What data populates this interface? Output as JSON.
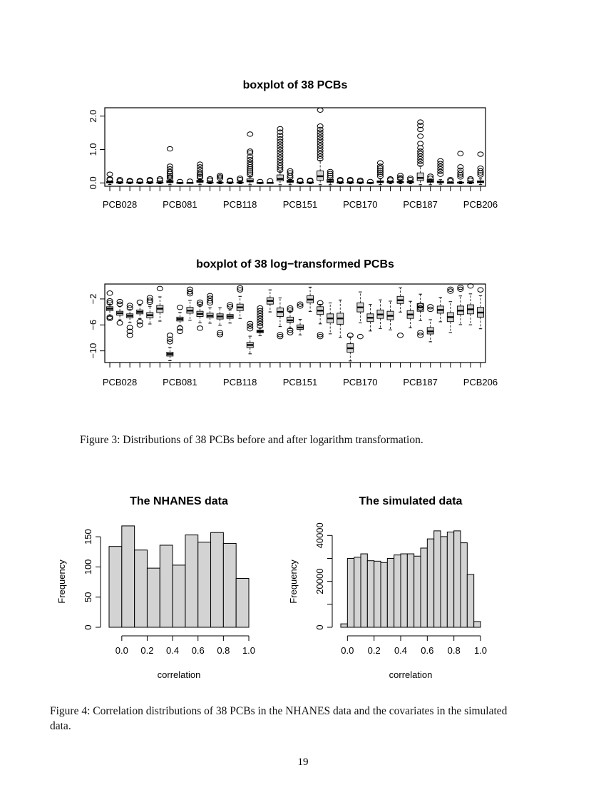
{
  "figure3": {
    "caption": "Figure 3: Distributions of 38 PCBs before and after logarithm transformation."
  },
  "figure4": {
    "caption": "Figure 4:   Correlation distributions of 38 PCBs in the NHANES data and the covariates in the simulated data."
  },
  "page_number": "19",
  "chart_data": [
    {
      "type": "boxplot",
      "title": "boxplot of 38 PCBs",
      "xlabel": "",
      "ylabel": "",
      "n_boxes": 38,
      "x_tick_labels": [
        "PCB028",
        "PCB081",
        "PCB118",
        "PCB151",
        "PCB170",
        "PCB187",
        "PCB206"
      ],
      "x_tick_label_positions": [
        1,
        7,
        13,
        19,
        25,
        31,
        37
      ],
      "y_ticks": [
        "0.0",
        "1.0",
        "2.0"
      ],
      "y_tick_values": [
        0,
        1,
        2
      ],
      "ylim": [
        -0.1,
        2.25
      ],
      "medians": [
        0.02,
        0.01,
        0.01,
        0.01,
        0.01,
        0.01,
        0.03,
        0.0,
        0.0,
        0.04,
        0.01,
        0.01,
        0.01,
        0.01,
        0.06,
        0.0,
        0.0,
        0.12,
        0.04,
        0.01,
        0.01,
        0.2,
        0.05,
        0.01,
        0.01,
        0.01,
        0.0,
        0.03,
        0.02,
        0.02,
        0.02,
        0.15,
        0.05,
        0.02,
        0.0,
        0.01,
        0.01,
        0.03
      ],
      "box_q1": [
        0.0,
        0.0,
        0.0,
        0.0,
        0.0,
        0.0,
        0.01,
        0.0,
        0.0,
        0.02,
        0.0,
        0.0,
        0.0,
        0.0,
        0.03,
        0.0,
        0.0,
        0.06,
        0.02,
        0.0,
        0.0,
        0.08,
        0.02,
        0.0,
        0.0,
        0.0,
        0.0,
        0.01,
        0.01,
        0.01,
        0.01,
        0.07,
        0.02,
        0.01,
        0.0,
        0.0,
        0.0,
        0.01
      ],
      "box_q3": [
        0.04,
        0.02,
        0.02,
        0.02,
        0.02,
        0.02,
        0.07,
        0.01,
        0.01,
        0.08,
        0.02,
        0.02,
        0.02,
        0.02,
        0.12,
        0.01,
        0.01,
        0.24,
        0.08,
        0.02,
        0.02,
        0.36,
        0.1,
        0.02,
        0.02,
        0.02,
        0.01,
        0.06,
        0.04,
        0.04,
        0.04,
        0.3,
        0.1,
        0.05,
        0.01,
        0.02,
        0.02,
        0.06
      ],
      "outliers": [
        [
          0.26,
          0.12,
          0.1
        ],
        [
          0.1,
          0.06
        ],
        [
          0.07,
          0.05
        ],
        [
          0.07,
          0.05
        ],
        [
          0.1,
          0.07
        ],
        [
          0.12,
          0.08
        ],
        [
          1.02,
          0.5,
          0.42,
          0.34,
          0.28,
          0.22,
          0.18,
          0.14
        ],
        [
          0.04
        ],
        [
          0.05
        ],
        [
          0.56,
          0.48,
          0.4,
          0.32,
          0.26,
          0.2,
          0.16
        ],
        [
          0.12,
          0.08
        ],
        [
          0.22,
          0.18,
          0.14
        ],
        [
          0.08,
          0.06
        ],
        [
          0.14,
          0.1
        ],
        [
          1.46,
          0.95,
          0.9,
          0.78,
          0.7,
          0.62,
          0.55,
          0.48,
          0.42,
          0.36,
          0.3,
          0.24
        ],
        [
          0.04
        ],
        [
          0.06
        ],
        [
          1.62,
          1.52,
          1.42,
          1.32,
          1.24,
          1.16,
          1.08,
          1.0,
          0.92,
          0.84,
          0.76,
          0.68,
          0.6,
          0.52,
          0.45,
          0.38
        ],
        [
          0.36,
          0.3,
          0.22,
          0.16
        ],
        [
          0.08,
          0.06
        ],
        [
          0.08,
          0.06
        ],
        [
          2.18,
          1.7,
          1.6,
          1.52,
          1.44,
          1.36,
          1.28,
          1.2,
          1.12,
          1.04,
          0.96,
          0.88,
          0.8,
          0.72
        ],
        [
          0.34,
          0.28,
          0.22,
          0.16
        ],
        [
          0.1,
          0.07
        ],
        [
          0.1,
          0.07
        ],
        [
          0.08,
          0.05
        ],
        [
          0.04
        ],
        [
          0.6,
          0.5,
          0.44,
          0.38,
          0.32,
          0.26,
          0.2
        ],
        [
          0.12,
          0.09
        ],
        [
          0.22,
          0.16,
          0.12
        ],
        [
          0.14,
          0.1
        ],
        [
          1.82,
          1.72,
          1.6,
          1.4,
          1.18,
          1.05,
          0.95,
          0.88,
          0.8,
          0.72,
          0.64,
          0.56
        ],
        [
          0.2,
          0.14
        ],
        [
          0.66,
          0.58,
          0.5,
          0.42,
          0.34,
          0.26
        ],
        [
          0.1,
          0.06
        ],
        [
          0.88,
          0.48,
          0.38,
          0.3,
          0.24,
          0.18
        ],
        [
          0.12,
          0.08
        ],
        [
          0.86,
          0.44,
          0.36,
          0.3,
          0.24
        ]
      ]
    },
    {
      "type": "boxplot",
      "title": "boxplot of 38 log−transformed PCBs",
      "xlabel": "",
      "ylabel": "",
      "n_boxes": 38,
      "x_tick_labels": [
        "PCB028",
        "PCB081",
        "PCB118",
        "PCB151",
        "PCB170",
        "PCB187",
        "PCB206"
      ],
      "x_tick_label_positions": [
        1,
        7,
        13,
        19,
        25,
        31,
        37
      ],
      "y_ticks": [
        "−10",
        "−6",
        "−2"
      ],
      "y_tick_values": [
        -10,
        -6,
        -2
      ],
      "ylim": [
        -11.8,
        0.3
      ],
      "medians": [
        -3.5,
        -4.2,
        -4.6,
        -4.0,
        -4.5,
        -3.5,
        -10.5,
        -5.1,
        -3.8,
        -4.3,
        -4.6,
        -4.7,
        -4.7,
        -3.3,
        -9.1,
        -7.0,
        -2.3,
        -4.0,
        -5.3,
        -6.4,
        -2.1,
        -3.8,
        -5.0,
        -5.0,
        -9.6,
        -3.3,
        -4.9,
        -4.4,
        -4.6,
        -2.2,
        -4.4,
        -3.3,
        -7.0,
        -3.7,
        -4.8,
        -3.8,
        -3.6,
        -4.1
      ],
      "box_q1": [
        -3.8,
        -4.5,
        -4.9,
        -4.3,
        -4.9,
        -4.1,
        -10.8,
        -5.4,
        -4.2,
        -4.7,
        -4.9,
        -5.1,
        -5.0,
        -3.8,
        -9.5,
        -7.2,
        -2.8,
        -4.7,
        -5.6,
        -6.7,
        -2.6,
        -4.4,
        -5.7,
        -5.9,
        -10.2,
        -4.0,
        -5.5,
        -5.0,
        -5.2,
        -2.7,
        -5.0,
        -3.9,
        -7.4,
        -4.2,
        -5.5,
        -4.4,
        -4.3,
        -4.8
      ],
      "box_q3": [
        -3.2,
        -3.9,
        -4.3,
        -3.7,
        -4.1,
        -3.0,
        -10.2,
        -4.8,
        -3.3,
        -3.9,
        -4.2,
        -4.3,
        -4.4,
        -2.8,
        -8.7,
        -6.8,
        -1.8,
        -3.4,
        -4.8,
        -6.0,
        -1.5,
        -3.2,
        -4.3,
        -4.2,
        -8.9,
        -2.6,
        -4.3,
        -3.7,
        -3.9,
        -1.6,
        -3.8,
        -2.7,
        -6.4,
        -3.1,
        -4.1,
        -3.1,
        -2.9,
        -3.3
      ],
      "outliers": [
        [
          -1.1,
          -2.3,
          -2.6,
          -4.8,
          -5.0
        ],
        [
          -2.4,
          -2.8,
          -5.7
        ],
        [
          -3.0,
          -3.4,
          -6.4,
          -7.0,
          -7.6
        ],
        [
          -2.5,
          -5.5,
          -6.0
        ],
        [
          -1.8,
          -2.2,
          -2.5
        ],
        [
          -0.4
        ],
        [
          -7.6,
          -8.2,
          -8.6
        ],
        [
          -3.3,
          -6.5,
          -7.0
        ],
        [
          -0.5,
          -0.9,
          -1.2
        ],
        [
          -2.5,
          -2.8,
          -6.5
        ],
        [
          -1.5,
          -1.9,
          -2.3,
          -2.6
        ],
        [
          -7.2,
          -7.5
        ],
        [
          -2.9,
          -3.2
        ],
        [
          -0.3,
          -0.6
        ],
        [
          -5.8,
          -6.2,
          -6.6
        ],
        [
          -3.4,
          -3.8,
          -4.2,
          -4.6,
          -5.0,
          -5.4,
          -5.8,
          -6.2
        ],
        [],
        [
          -7.5,
          -7.8
        ],
        [
          -3.4,
          -3.7,
          -6.8,
          -7.2
        ],
        [
          -2.8,
          -3.1
        ],
        [],
        [
          -2.6,
          -7.5,
          -7.8
        ],
        [],
        [],
        [
          -7.6
        ],
        [
          -7.8
        ],
        [],
        [],
        [],
        [
          -7.6
        ],
        [],
        [
          -3.0,
          -3.4,
          -7.2,
          -7.6
        ],
        [
          -3.2,
          -3.6
        ],
        [],
        [
          -0.5,
          -0.8
        ],
        [
          -0.2,
          -0.5
        ],
        [
          0.0
        ],
        [
          -0.6
        ]
      ]
    },
    {
      "type": "bar",
      "title": "The NHANES data",
      "xlabel": "correlation",
      "ylabel": "Frequency",
      "bin_edges": [
        -0.1,
        0.0,
        0.1,
        0.2,
        0.3,
        0.4,
        0.5,
        0.6,
        0.7,
        0.8,
        0.9,
        1.0
      ],
      "values": [
        134,
        168,
        128,
        98,
        136,
        103,
        153,
        141,
        157,
        139,
        81
      ],
      "x_ticks": [
        "0.0",
        "0.2",
        "0.4",
        "0.6",
        "0.8",
        "1.0"
      ],
      "x_tick_values": [
        0.0,
        0.2,
        0.4,
        0.6,
        0.8,
        1.0
      ],
      "y_ticks": [
        "0",
        "50",
        "100",
        "150"
      ],
      "y_tick_values": [
        0,
        50,
        100,
        150
      ],
      "xlim": [
        -0.1,
        1.0
      ],
      "ylim": [
        0,
        175
      ]
    },
    {
      "type": "bar",
      "title": "The simulated data",
      "xlabel": "correlation",
      "ylabel": "Frequency",
      "bin_edges": [
        -0.05,
        0.0,
        0.05,
        0.1,
        0.15,
        0.2,
        0.25,
        0.3,
        0.35,
        0.4,
        0.45,
        0.5,
        0.55,
        0.6,
        0.65,
        0.7,
        0.75,
        0.8,
        0.85,
        0.9,
        0.95,
        1.0
      ],
      "values": [
        1500,
        30000,
        30500,
        32000,
        29000,
        28800,
        28200,
        30000,
        31500,
        32000,
        32000,
        31000,
        34500,
        38500,
        42000,
        39500,
        41500,
        42000,
        36800,
        23000,
        2500
      ],
      "x_ticks": [
        "0.0",
        "0.2",
        "0.4",
        "0.6",
        "0.8",
        "1.0"
      ],
      "x_tick_values": [
        0.0,
        0.2,
        0.4,
        0.6,
        0.8,
        1.0
      ],
      "y_ticks": [
        "0",
        "20000",
        "40000"
      ],
      "y_tick_values": [
        0,
        20000,
        40000
      ],
      "y_minor_ticks": [
        10000,
        30000
      ],
      "xlim": [
        -0.05,
        1.0
      ],
      "ylim": [
        0,
        46000
      ]
    }
  ]
}
